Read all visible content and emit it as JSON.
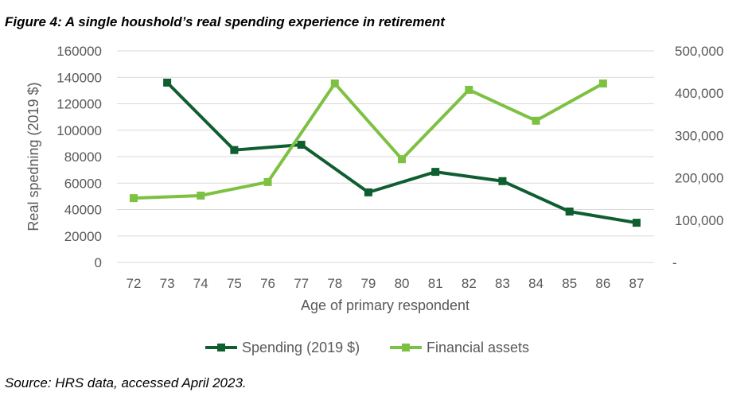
{
  "title": "Figure 4: A single houshold’s real spending experience in retirement",
  "source": "Source: HRS data, accessed April 2023.",
  "chart_data": {
    "type": "line",
    "xlabel": "Age of primary respondent",
    "ylabel": "Real spedning (2019 $)",
    "x": [
      72,
      73,
      74,
      75,
      76,
      77,
      78,
      79,
      80,
      81,
      82,
      83,
      84,
      85,
      86,
      87
    ],
    "x_ticks": [
      "72",
      "73",
      "74",
      "75",
      "76",
      "77",
      "78",
      "79",
      "80",
      "81",
      "82",
      "83",
      "84",
      "85",
      "86",
      "87"
    ],
    "ylim": [
      0,
      160000
    ],
    "y_ticks": [
      "0",
      "20000",
      "40000",
      "60000",
      "80000",
      "100000",
      "120000",
      "140000",
      "160000"
    ],
    "y2lim": [
      0,
      500000
    ],
    "y2_ticks": [
      "-",
      "100,000",
      "200,000",
      "300,000",
      "400,000",
      "500,000"
    ],
    "grid": true,
    "legend": "bottom",
    "series": [
      {
        "name": "Spending (2019 $)",
        "axis": "left",
        "color": "#0E5E30",
        "points": [
          [
            73,
            136000
          ],
          [
            75,
            85000
          ],
          [
            77,
            89000
          ],
          [
            79,
            53000
          ],
          [
            81,
            68500
          ],
          [
            83,
            61500
          ],
          [
            85,
            38500
          ],
          [
            87,
            30000
          ]
        ]
      },
      {
        "name": "Financial assets",
        "axis": "right",
        "color": "#7DC142",
        "points": [
          [
            72,
            152000
          ],
          [
            74,
            158000
          ],
          [
            76,
            190000
          ],
          [
            78,
            423000
          ],
          [
            80,
            244000
          ],
          [
            82,
            408000
          ],
          [
            84,
            335000
          ],
          [
            86,
            423000
          ]
        ]
      }
    ]
  }
}
